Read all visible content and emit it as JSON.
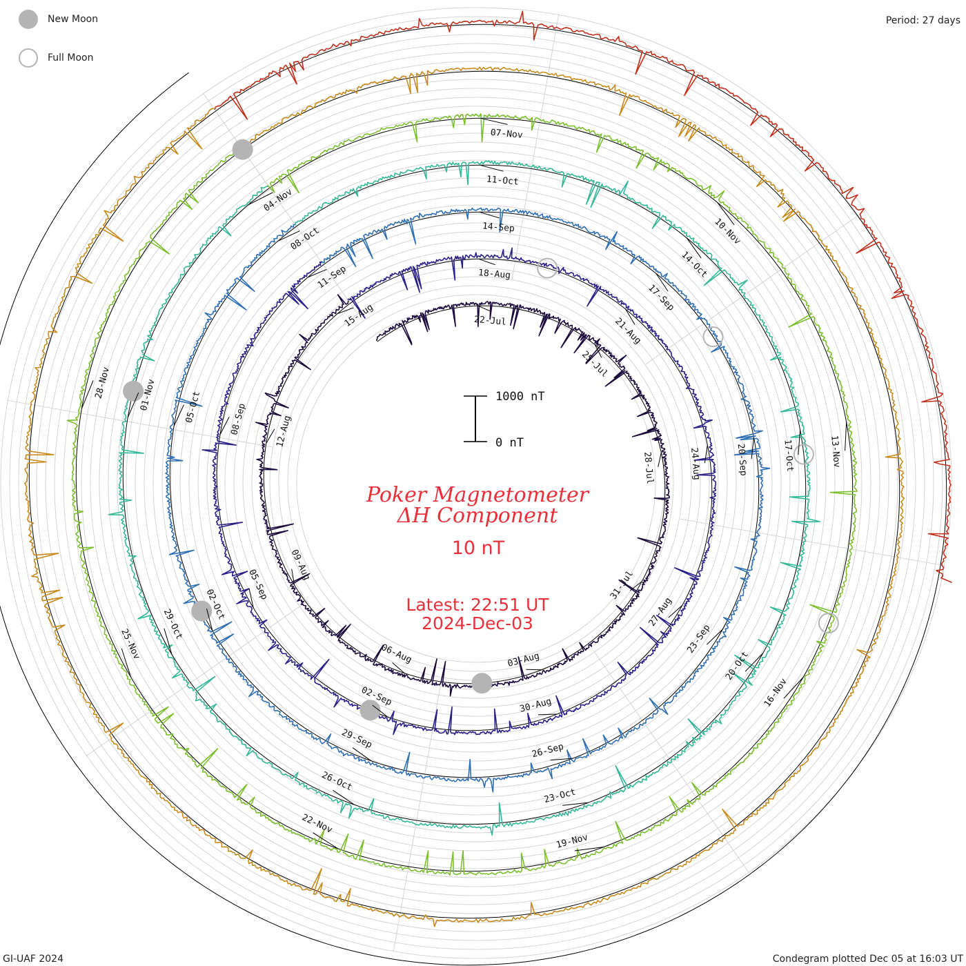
{
  "legend": {
    "new_moon": "New Moon",
    "full_moon": "Full Moon"
  },
  "period": "Period: 27 days",
  "credit": "GI-UAF 2024",
  "plotted": "Condegram plotted Dec 05 at 16:03 UT",
  "colors": {
    "title": "#e8303a",
    "moon": "#b4b4b4",
    "grid": "#c8c8c8",
    "baseline": "#000000"
  },
  "chart_data": {
    "type": "line",
    "title_line1": "Poker Magnetometer",
    "title_line2": "ΔH Component",
    "scale_label": "10 nT",
    "scale_bar": {
      "top_label": "1000 nT",
      "bottom_label": "0 nT"
    },
    "latest_line1": "Latest: 22:51 UT",
    "latest_line2": "2024-Dec-03",
    "period_days": 27,
    "series": [
      {
        "color": "#1a0a3c",
        "ticks": [
          "22-Jul",
          "25-Jul",
          "28-Jul",
          "31-Jul",
          "03-Aug",
          "06-Aug",
          "09-Aug",
          "12-Aug"
        ]
      },
      {
        "color": "#2a1e88",
        "ticks": [
          "15-Aug",
          "18-Aug",
          "21-Aug",
          "24-Aug",
          "27-Aug",
          "30-Aug",
          "02-Sep",
          "05-Sep"
        ]
      },
      {
        "color": "#2f6fb4",
        "ticks": [
          "08-Sep",
          "11-Sep",
          "14-Sep",
          "17-Sep",
          "20-Sep",
          "23-Sep",
          "26-Sep",
          "29-Sep"
        ]
      },
      {
        "color": "#34b89a",
        "ticks": [
          "02-Oct",
          "05-Oct",
          "08-Oct",
          "11-Oct",
          "14-Oct",
          "17-Oct",
          "20-Oct",
          "23-Oct",
          "26-Oct"
        ]
      },
      {
        "color": "#7cbf2c",
        "ticks": [
          "29-Oct",
          "01-Nov",
          "04-Nov",
          "07-Nov",
          "10-Nov",
          "13-Nov",
          "16-Nov",
          "19-Nov",
          "22-Nov"
        ]
      },
      {
        "color": "#c88a1c",
        "ticks": [
          "25-Nov",
          "28-Nov"
        ]
      },
      {
        "color": "#c0301c",
        "ticks": []
      }
    ],
    "new_moons": [
      "04-Aug",
      "02-Sep",
      "02-Oct",
      "01-Nov",
      "01-Dec"
    ],
    "full_moons": [
      "19-Aug",
      "18-Sep",
      "17-Oct",
      "15-Nov"
    ],
    "grid": true
  }
}
